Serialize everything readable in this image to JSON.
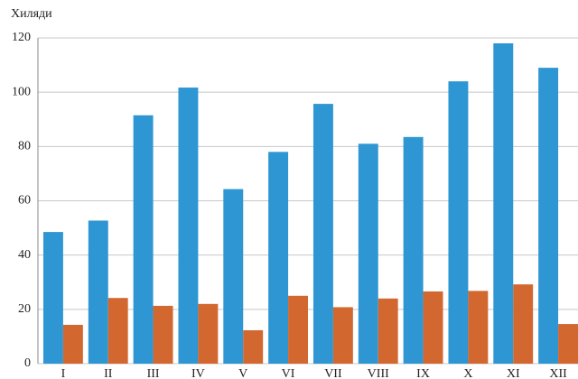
{
  "chart_data": {
    "type": "bar",
    "y_label": "Хиляди",
    "categories": [
      "I",
      "II",
      "III",
      "IV",
      "V",
      "VI",
      "VII",
      "VIII",
      "IX",
      "X",
      "XI",
      "XII"
    ],
    "series": [
      {
        "color": "#2e96d2",
        "values": [
          48.5,
          52.7,
          91.5,
          101.7,
          64.3,
          78,
          95.7,
          81,
          83.5,
          104,
          118,
          109
        ]
      },
      {
        "color": "#d2672f",
        "values": [
          14.3,
          24.2,
          21.3,
          22,
          12.3,
          25,
          20.8,
          24,
          26.6,
          26.8,
          29.2,
          14.6
        ]
      }
    ],
    "ylim": [
      0,
      120
    ],
    "yticks": [
      0,
      20,
      40,
      60,
      80,
      100,
      120
    ],
    "grid": true
  }
}
